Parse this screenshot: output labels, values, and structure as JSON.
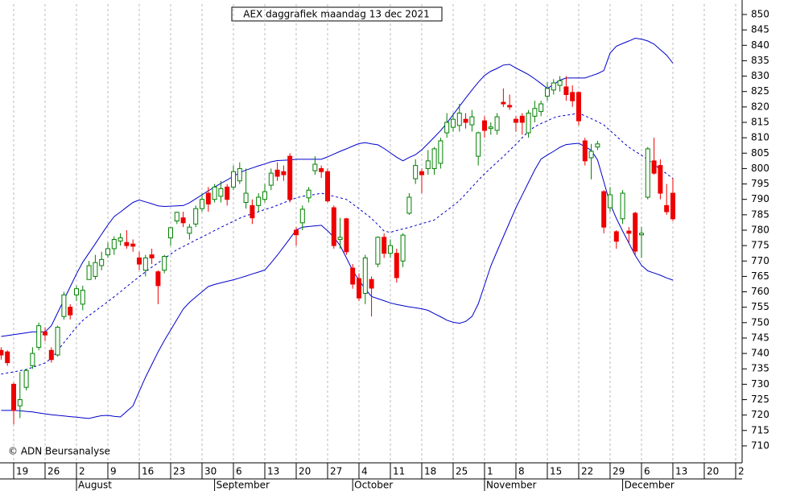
{
  "chart_data": {
    "type": "candlestick",
    "title": "AEX daggrafiek maandag 13 dec 2021",
    "copyright": "© ADN Beursanalyse",
    "up_color": "#008000",
    "down_color": "#ee0000",
    "grid": true,
    "open": [
      741,
      740.5,
      730,
      723,
      729,
      736,
      742,
      747,
      741,
      739.5,
      752,
      755,
      759,
      756,
      764,
      765,
      768.5,
      772,
      774,
      776.5,
      776,
      775.5,
      771,
      767,
      772,
      766.5,
      767,
      777.5,
      783,
      784,
      779,
      782,
      787,
      792,
      790,
      791,
      794,
      794,
      796,
      789,
      788,
      788,
      790,
      794.6,
      799.5,
      799,
      804,
      780,
      782.4,
      790.5,
      799.3,
      800,
      799,
      787.3,
      777,
      783.7,
      767.7,
      764.3,
      759.5,
      764,
      769,
      777.7,
      772.5,
      772.5,
      770,
      785.5,
      796.7,
      799,
      800,
      800,
      801.7,
      811.6,
      813.4,
      814,
      816,
      814.2,
      804,
      815.5,
      813,
      812.4,
      821.5,
      820.5,
      816,
      817,
      811.6,
      817,
      818.5,
      823.5,
      825.5,
      827,
      826.5,
      824.7,
      824.7,
      809,
      803.5,
      807,
      792.5,
      787.3,
      779.5,
      783.7,
      779.7,
      785.5,
      778.5,
      790.7,
      802.5,
      801,
      788,
      792
    ],
    "high": [
      742,
      741,
      730.5,
      734,
      735,
      742,
      750,
      748.5,
      742,
      749,
      760,
      756,
      762,
      762,
      770,
      772,
      773,
      776,
      778,
      779,
      780,
      777,
      773,
      772,
      774,
      767,
      772,
      781,
      786,
      786,
      782,
      788,
      792,
      794,
      795,
      796,
      795,
      801,
      802,
      800,
      790,
      792,
      795,
      800,
      802,
      801,
      805,
      781,
      788,
      794,
      804,
      801,
      800,
      788,
      784,
      784,
      769,
      766,
      772,
      765,
      778,
      779,
      777,
      774,
      779,
      792,
      803,
      800,
      806,
      807,
      810,
      818,
      818,
      821,
      818,
      819,
      812,
      817,
      815,
      818,
      826,
      824,
      817,
      818,
      819,
      822,
      822,
      828,
      829,
      830,
      830,
      827,
      825,
      810,
      808,
      809,
      793,
      794,
      780,
      793,
      781,
      786,
      781,
      807,
      810,
      803,
      795,
      797
    ],
    "low": [
      738,
      736,
      717,
      719,
      728,
      735,
      741,
      744,
      737,
      739,
      751,
      751,
      757,
      754,
      764,
      764,
      767,
      771,
      772,
      775,
      774,
      773,
      767,
      765,
      769,
      756,
      766,
      775,
      782,
      781,
      777,
      781,
      786,
      786,
      789,
      789,
      788,
      793,
      795,
      787,
      782,
      786,
      789,
      793,
      796,
      796,
      789,
      775,
      780,
      789,
      798,
      797,
      789,
      774,
      774,
      772,
      761,
      757,
      756,
      752,
      768,
      771,
      771,
      763,
      768,
      785,
      795,
      792,
      798,
      798,
      800,
      810,
      812,
      812,
      813,
      812,
      801,
      810,
      811,
      811,
      820,
      819,
      812,
      811,
      810,
      815,
      817,
      822,
      824,
      825,
      822,
      820,
      814,
      801,
      796.5,
      806,
      779,
      786,
      774,
      782,
      776,
      772,
      771,
      790,
      798,
      790,
      785,
      783
    ],
    "close": [
      739.5,
      737,
      721.5,
      725,
      734.5,
      740,
      749,
      746,
      738,
      748.5,
      759,
      752.5,
      761,
      760.5,
      768.5,
      769.5,
      770.5,
      774,
      777,
      777.5,
      775,
      774.8,
      769,
      771,
      771,
      762,
      771.5,
      780.8,
      785.8,
      782.4,
      781,
      787,
      790,
      788.5,
      794,
      793.5,
      790,
      799,
      800,
      792,
      784,
      790.7,
      792.5,
      798.5,
      797.5,
      798,
      790,
      778.5,
      786.8,
      793,
      801.4,
      799,
      789.5,
      775,
      777.7,
      773,
      762.5,
      758,
      771,
      761.2,
      777.7,
      772.5,
      775,
      764.6,
      778.4,
      790.7,
      801,
      798,
      802.5,
      806.4,
      809,
      815,
      816,
      818,
      815,
      816.8,
      811.6,
      812.4,
      813.5,
      816.8,
      821,
      820,
      815,
      815,
      818,
      819.5,
      821,
      826,
      827.8,
      828.5,
      824,
      822,
      815.5,
      802.5,
      805.6,
      808,
      781,
      791.5,
      776.4,
      792,
      779,
      773.2,
      779,
      806.4,
      798.5,
      792,
      786,
      783.7
    ],
    "overlays": [
      {
        "color": "#0000cc",
        "dash": false,
        "values": [
          745.5,
          745.8,
          746.1,
          746.4,
          746.7,
          747,
          747,
          747,
          749,
          753.2,
          757.4,
          761.6,
          765.8,
          769.6,
          772.6,
          775.6,
          778.7,
          781.7,
          784.4,
          785.9,
          787.5,
          789,
          789.8,
          789.2,
          788.6,
          787.9,
          787.7,
          787.8,
          787.9,
          788,
          788.9,
          790.2,
          791.5,
          792.8,
          794,
          795.2,
          796.3,
          797.5,
          798.7,
          799.5,
          800.2,
          800.9,
          801.5,
          802.2,
          802.6,
          802.7,
          802.8,
          803,
          803,
          803,
          803,
          803,
          803.8,
          804.7,
          805.6,
          806.4,
          807.3,
          808.1,
          808.4,
          808,
          807.7,
          806.5,
          805.1,
          803.7,
          802.5,
          803.6,
          804.5,
          806.1,
          808.1,
          810.2,
          812.3,
          814.8,
          817.5,
          820.2,
          822.9,
          825.5,
          828,
          830.2,
          831.6,
          832.5,
          833.6,
          833.8,
          832.6,
          831.6,
          830.5,
          829.1,
          827.6,
          826,
          827.3,
          828.7,
          829.4,
          829.4,
          829.4,
          829.4,
          830.1,
          830.8,
          831.8,
          837.5,
          839.7,
          840.6,
          841.4,
          842.3,
          842,
          841.4,
          840.4,
          838.6,
          836.8,
          834.2
        ]
      },
      {
        "color": "#0000cc",
        "dash": true,
        "values": [
          733.3,
          733.7,
          734,
          734.4,
          734.8,
          735.5,
          736.2,
          736.9,
          738.4,
          740.9,
          743.5,
          746,
          748.6,
          750.7,
          752.3,
          753.8,
          755.3,
          756.8,
          758.4,
          760,
          761.7,
          763.3,
          764.9,
          766.5,
          768,
          769.4,
          770.8,
          772.2,
          773.7,
          774.7,
          775.7,
          776.8,
          777.8,
          778.8,
          779.9,
          780.9,
          781.9,
          782.9,
          783.9,
          784.7,
          785.3,
          786,
          786.7,
          787.3,
          788.1,
          788.9,
          789.7,
          790.5,
          791,
          791.3,
          791.6,
          792,
          791.5,
          791,
          790.5,
          790,
          788.5,
          787,
          785.4,
          783.8,
          781.8,
          779.7,
          779.3,
          779.9,
          780.4,
          780.9,
          781.5,
          782.1,
          782.7,
          783.3,
          784.9,
          786.4,
          788,
          789.6,
          791.8,
          794,
          796.2,
          798.3,
          800.2,
          802.1,
          803.9,
          805.9,
          807.9,
          810,
          812.1,
          813.6,
          814.6,
          815.5,
          816.5,
          817,
          817.3,
          817.6,
          818,
          817.1,
          816.2,
          815.2,
          814.2,
          812.3,
          810.5,
          808.6,
          806.9,
          805.6,
          804.3,
          802.9,
          801.3,
          799.8,
          798.3,
          796.8
        ]
      },
      {
        "color": "#0000cc",
        "dash": false,
        "values": [
          721.5,
          721.5,
          721.5,
          721.4,
          721.2,
          721,
          720.7,
          720.4,
          720.1,
          719.9,
          719.7,
          719.5,
          719.3,
          719.1,
          718.9,
          719.4,
          719.8,
          719.9,
          719.6,
          719.4,
          721.2,
          723,
          727.7,
          732.3,
          736.4,
          740.5,
          744.2,
          747.6,
          751,
          754.4,
          756.6,
          758.3,
          760,
          761.7,
          762.4,
          762.9,
          763.4,
          763.9,
          764.5,
          765.1,
          765.8,
          766.4,
          767.1,
          769.4,
          771.9,
          774.6,
          777.3,
          780.1,
          781,
          781.2,
          781.4,
          781.6,
          779.8,
          777.7,
          775,
          771,
          766.9,
          763.8,
          760.9,
          758.5,
          757.8,
          757.1,
          756.4,
          755.9,
          755.5,
          755.1,
          754.8,
          754.5,
          754,
          752.9,
          751.9,
          750.8,
          750.1,
          749.8,
          750.4,
          752,
          756.1,
          762.2,
          768.4,
          773.2,
          777.9,
          782.6,
          787.3,
          791.4,
          795.5,
          799.6,
          803.1,
          804.4,
          805.6,
          806.9,
          807.8,
          808,
          808.2,
          807.1,
          805.9,
          802.8,
          795.7,
          788.6,
          783.8,
          779.7,
          775.8,
          771.8,
          768.6,
          766.8,
          766.1,
          765.4,
          764.5,
          763.8
        ]
      }
    ],
    "xlim": [
      -0.18,
      118.03
    ],
    "xticks": [
      {
        "value": 2,
        "label": "19"
      },
      {
        "value": 7,
        "label": "26"
      },
      {
        "value": 12,
        "label": "2"
      },
      {
        "value": 17,
        "label": "9"
      },
      {
        "value": 22,
        "label": "16"
      },
      {
        "value": 27,
        "label": "23"
      },
      {
        "value": 32,
        "label": "30"
      },
      {
        "value": 37,
        "label": "6"
      },
      {
        "value": 42,
        "label": "13"
      },
      {
        "value": 47,
        "label": "20"
      },
      {
        "value": 52,
        "label": "27"
      },
      {
        "value": 57,
        "label": "4"
      },
      {
        "value": 62,
        "label": "11"
      },
      {
        "value": 67,
        "label": "18"
      },
      {
        "value": 72,
        "label": "25"
      },
      {
        "value": 77,
        "label": "1"
      },
      {
        "value": 82,
        "label": "8"
      },
      {
        "value": 87,
        "label": "15"
      },
      {
        "value": 92,
        "label": "22"
      },
      {
        "value": 97,
        "label": "29"
      },
      {
        "value": 102,
        "label": "6"
      },
      {
        "value": 107,
        "label": "13"
      },
      {
        "value": 112,
        "label": "20"
      },
      {
        "value": 117,
        "label": "2"
      }
    ],
    "months": [
      {
        "value": 12,
        "label": "August"
      },
      {
        "value": 34,
        "label": "September"
      },
      {
        "value": 56,
        "label": "October"
      },
      {
        "value": 77,
        "label": "November"
      },
      {
        "value": 99,
        "label": "December"
      }
    ],
    "ylim": [
      704.5,
      853.4
    ],
    "yticks": [
      710,
      715,
      720,
      725,
      730,
      735,
      740,
      745,
      750,
      755,
      760,
      765,
      770,
      775,
      780,
      785,
      790,
      795,
      800,
      805,
      810,
      815,
      820,
      825,
      830,
      835,
      840,
      845,
      850
    ]
  }
}
